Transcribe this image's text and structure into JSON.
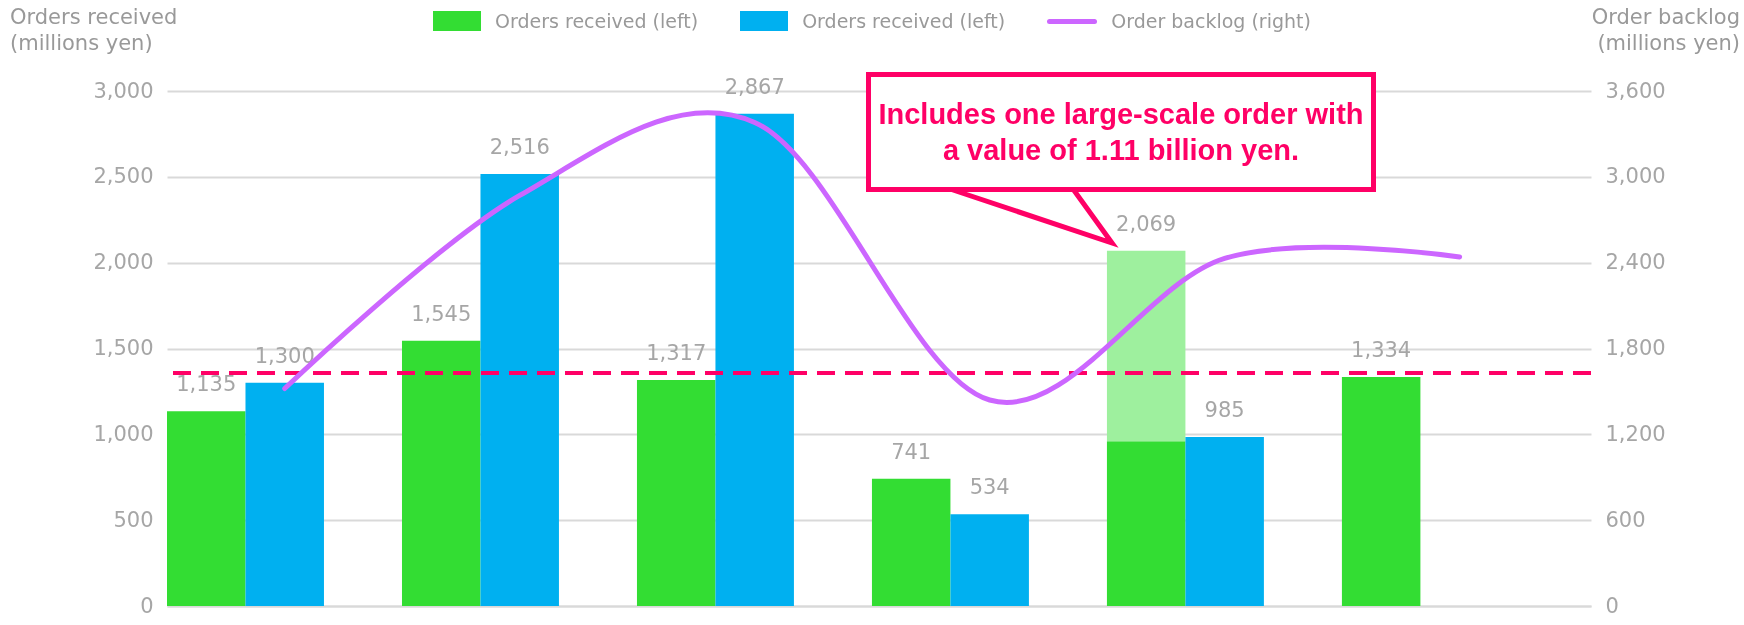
{
  "chart_data": {
    "type": "bar",
    "categories": [
      null,
      null,
      null,
      null,
      null,
      null
    ],
    "ylabel": "Orders received (millions yen)",
    "y2label": "Order backlog (millions yen)",
    "ylim": [
      0,
      3000
    ],
    "yticks": [
      0,
      500,
      {
        "value": 1000,
        "label": "1,000"
      },
      {
        "value": 1500,
        "label": "1,500"
      },
      {
        "value": 2000,
        "label": "2,000"
      },
      {
        "value": 2500,
        "label": "2,500"
      },
      {
        "value": 3000,
        "label": "3,000"
      }
    ],
    "y2lim": [
      0,
      3600
    ],
    "y2ticks": [
      0,
      600,
      {
        "value": 1200,
        "label": "1,200"
      },
      {
        "value": 1800,
        "label": "1,800"
      },
      {
        "value": 2400,
        "label": "2,400"
      },
      {
        "value": 3000,
        "label": "3,000"
      },
      {
        "value": 3600,
        "label": "3,600"
      }
    ],
    "grid": "y",
    "legend": "top",
    "series": [
      {
        "name": "Orders received (left)",
        "type": "bar",
        "color": "#33dd33",
        "values": [
          1135,
          1545,
          1317,
          741,
          959,
          1334
        ],
        "value_labels": [
          "1,135",
          "1,545",
          "1,317",
          "741",
          null,
          "1,334"
        ]
      },
      {
        "type": "bar",
        "color": "#9ef09e",
        "base": [
          null,
          null,
          null,
          null,
          959,
          null
        ],
        "values": [
          null,
          null,
          null,
          null,
          1110,
          null
        ],
        "value_labels": [
          null,
          null,
          null,
          null,
          "2,069",
          null
        ]
      },
      {
        "name": "Orders received (left)",
        "type": "bar",
        "color": "#00b0f0",
        "values": [
          1300,
          2516,
          2867,
          534,
          985,
          null
        ],
        "value_labels": [
          "1,300",
          "2,516",
          "2,867",
          "534",
          "985",
          null
        ]
      },
      {
        "name": "Order backlog (right)",
        "type": "line",
        "axis": "y2",
        "color": "#cc66ff",
        "values": [
          1520,
          2870,
          3380,
          1440,
          2430,
          2440
        ]
      }
    ],
    "ref_lines": [
      {
        "axis": "y",
        "value": 1357,
        "color": "#ff0066",
        "line_style": "dashed"
      }
    ],
    "annotations": [
      "Includes one large-scale order with a value of 1.11 billion yen."
    ]
  }
}
